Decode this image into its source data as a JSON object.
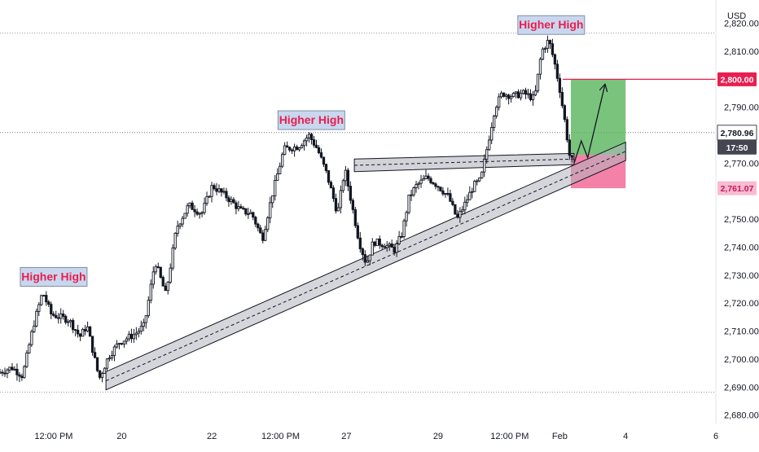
{
  "chart_data": {
    "type": "candlestick",
    "currency": "USD",
    "y_axis": {
      "ticks": [
        2680,
        2690,
        2700,
        2710,
        2720,
        2730,
        2740,
        2750,
        2760,
        2770,
        2780,
        2790,
        2800,
        2810,
        2820
      ],
      "tick_labels": [
        "2,680.00",
        "2,690.00",
        "2,700.00",
        "2,710.00",
        "2,720.00",
        "2,730.00",
        "2,740.00",
        "2,750.00",
        "",
        "2,770.00",
        "",
        "2,790.00",
        "",
        "2,810.00",
        "2,820.00"
      ],
      "range": [
        2677,
        2826
      ]
    },
    "x_axis": {
      "range": [
        0,
        100
      ],
      "ticks": [
        {
          "t": 7.5,
          "label": "12:00 PM"
        },
        {
          "t": 17,
          "label": "20"
        },
        {
          "t": 29.6,
          "label": "22"
        },
        {
          "t": 39.2,
          "label": "12:00 PM"
        },
        {
          "t": 48.4,
          "label": "27"
        },
        {
          "t": 61.2,
          "label": "29"
        },
        {
          "t": 71.2,
          "label": "12:00 PM"
        },
        {
          "t": 78.2,
          "label": "Feb"
        },
        {
          "t": 87.4,
          "label": "4"
        },
        {
          "t": 100,
          "label": "6"
        }
      ]
    },
    "price_path": [
      [
        0,
        2695
      ],
      [
        2,
        2697
      ],
      [
        3.5,
        2694
      ],
      [
        5,
        2712
      ],
      [
        6.3,
        2724
      ],
      [
        7.5,
        2716
      ],
      [
        10,
        2714
      ],
      [
        11.5,
        2708
      ],
      [
        12.5,
        2712
      ],
      [
        14.2,
        2693
      ],
      [
        15.5,
        2701
      ],
      [
        17,
        2706
      ],
      [
        19.2,
        2709
      ],
      [
        20.5,
        2712
      ],
      [
        22,
        2735
      ],
      [
        23.5,
        2723
      ],
      [
        25,
        2747
      ],
      [
        26.7,
        2755
      ],
      [
        28.5,
        2752
      ],
      [
        30,
        2762
      ],
      [
        32,
        2758
      ],
      [
        34,
        2753
      ],
      [
        35.5,
        2752
      ],
      [
        37,
        2743
      ],
      [
        38.3,
        2758
      ],
      [
        40,
        2775
      ],
      [
        42,
        2776
      ],
      [
        43.5,
        2780
      ],
      [
        44.7,
        2775
      ],
      [
        46,
        2766
      ],
      [
        47.5,
        2752
      ],
      [
        48.5,
        2768
      ],
      [
        49.5,
        2755
      ],
      [
        50.5,
        2742
      ],
      [
        51.5,
        2734
      ],
      [
        52.5,
        2742
      ],
      [
        54,
        2741
      ],
      [
        55.5,
        2739
      ],
      [
        56.5,
        2745
      ],
      [
        57.5,
        2758
      ],
      [
        58.5,
        2762
      ],
      [
        60,
        2765
      ],
      [
        61.5,
        2762
      ],
      [
        63,
        2758
      ],
      [
        64.2,
        2750
      ],
      [
        65.4,
        2756
      ],
      [
        66.5,
        2762
      ],
      [
        67.5,
        2764
      ],
      [
        68.5,
        2777
      ],
      [
        69.5,
        2790
      ],
      [
        70.5,
        2795
      ],
      [
        72,
        2794
      ],
      [
        73.5,
        2795
      ],
      [
        75,
        2793
      ],
      [
        76,
        2810
      ],
      [
        77,
        2814
      ],
      [
        77.8,
        2806
      ],
      [
        78.5,
        2797
      ],
      [
        79.3,
        2784
      ],
      [
        80,
        2771
      ]
    ],
    "price_line": {
      "label": "2,780.96",
      "countdown": "17:50",
      "value": 2780.96
    },
    "target": {
      "label": "2,800.00",
      "value": 2800
    },
    "stop": {
      "label": "2,761.07",
      "value": 2761.07
    },
    "entry_value": 2773,
    "annotations": [
      {
        "text": "Higher High",
        "t": 7.5,
        "value": 2724
      },
      {
        "text": "Higher High",
        "t": 43.5,
        "value": 2780
      },
      {
        "text": "Higher High",
        "t": 77,
        "value": 2814
      }
    ],
    "trend_channel": {
      "upper": [
        [
          14.8,
          2695.5
        ],
        [
          87.4,
          2777.5
        ]
      ],
      "lower": [
        [
          14.8,
          2689
        ],
        [
          87.4,
          2771
        ]
      ]
    },
    "resistance_band": {
      "top": [
        [
          49.5,
          2771.5
        ],
        [
          80.2,
          2773.5
        ]
      ],
      "bottom": [
        [
          49.5,
          2767
        ],
        [
          80.2,
          2769.5
        ]
      ]
    },
    "projection_path": [
      [
        80.2,
        2770
      ],
      [
        81.2,
        2778
      ],
      [
        82.1,
        2772
      ],
      [
        84.5,
        2798
      ]
    ],
    "grid": false
  }
}
